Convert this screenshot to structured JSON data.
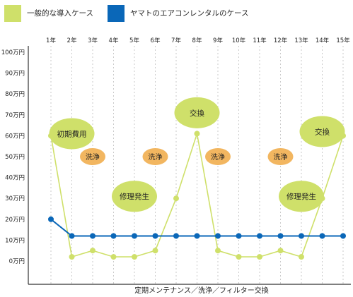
{
  "chart_data": {
    "type": "line",
    "x": [
      "1年",
      "2年",
      "3年",
      "4年",
      "5年",
      "6年",
      "7年",
      "8年",
      "9年",
      "10年",
      "11年",
      "12年",
      "13年",
      "14年",
      "15年"
    ],
    "y_ticks": [
      "100万円",
      "90万円",
      "80万円",
      "70万円",
      "60万円",
      "50万円",
      "40万円",
      "30万円",
      "20万円",
      "10万円",
      "0万円"
    ],
    "ylim": [
      0,
      100
    ],
    "xlabel": "定期メンテナンス／洗浄／フィルター交換",
    "legend_position": "top",
    "grid": {
      "vertical_dashed": true,
      "horizontal": false
    },
    "series": [
      {
        "name": "一般的な導入ケース",
        "color": "#cfe06a",
        "values": [
          60,
          2,
          5,
          2,
          2,
          5,
          30,
          61,
          5,
          2,
          2,
          5,
          2,
          30,
          60
        ]
      },
      {
        "name": "ヤマトのエアコンレンタルのケース",
        "color": "#0a67b8",
        "values": [
          20,
          12,
          12,
          12,
          12,
          12,
          12,
          12,
          12,
          12,
          12,
          12,
          12,
          12,
          12
        ]
      }
    ],
    "annotations": [
      {
        "text": "初期費用",
        "x": "2年",
        "y": 61,
        "style": "green"
      },
      {
        "text": "洗浄",
        "x": "3年",
        "y": 50,
        "style": "orange"
      },
      {
        "text": "洗浄",
        "x": "6年",
        "y": 50,
        "style": "orange"
      },
      {
        "text": "洗浄",
        "x": "9年",
        "y": 50,
        "style": "orange"
      },
      {
        "text": "洗浄",
        "x": "12年",
        "y": 50,
        "style": "orange"
      },
      {
        "text": "修理発生",
        "x": "5年",
        "y": 31,
        "style": "green"
      },
      {
        "text": "修理発生",
        "x": "13年",
        "y": 31,
        "style": "green"
      },
      {
        "text": "交換",
        "x": "8年",
        "y": 71,
        "style": "green"
      },
      {
        "text": "交換",
        "x": "14年",
        "y": 62,
        "style": "green"
      }
    ],
    "colors": {
      "green_bubble": "#cfe06a",
      "orange_bubble": "#f2b660",
      "axis": "#333333",
      "grid": "#bdbdbd"
    }
  }
}
